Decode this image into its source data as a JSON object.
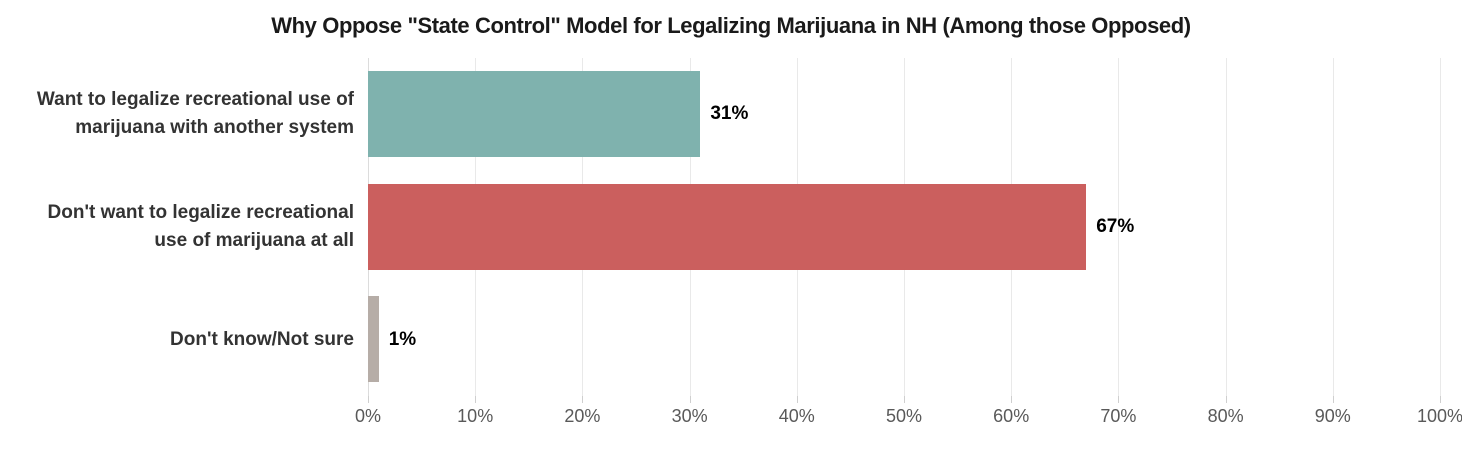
{
  "chart_data": {
    "type": "bar",
    "orientation": "horizontal",
    "title": "Why Oppose \"State Control\" Model for Legalizing Marijuana in NH (Among those Opposed)",
    "categories": [
      "Want to legalize recreational use of marijuana with another system",
      "Don't want to legalize recreational use of marijuana at all",
      "Don't know/Not sure"
    ],
    "label_lines": [
      [
        "Want to legalize recreational use of",
        "marijuana with another system"
      ],
      [
        "Don't want to legalize recreational",
        "use of marijuana at all"
      ],
      [
        "Don't know/Not sure"
      ]
    ],
    "values": [
      31,
      67,
      1
    ],
    "value_labels": [
      "31%",
      "67%",
      "1%"
    ],
    "bar_colors": [
      "#7fb2ae",
      "#cb5f5e",
      "#b6ada7"
    ],
    "x_ticks": [
      "0%",
      "10%",
      "20%",
      "30%",
      "40%",
      "50%",
      "60%",
      "70%",
      "80%",
      "90%",
      "100%"
    ],
    "xlim": [
      0,
      100
    ],
    "xlabel": "",
    "ylabel": "",
    "grid": "vertical-light",
    "legend": "none"
  },
  "colors": {
    "background": "#ffffff",
    "gridline": "#e9e9e9",
    "axis_line": "#dcdcdc",
    "tick_mark": "#cfcfcf",
    "tick_label_text": "#595959",
    "category_label_text": "#333333",
    "value_label_text": "#000000",
    "title_text": "#1a1a1a"
  }
}
